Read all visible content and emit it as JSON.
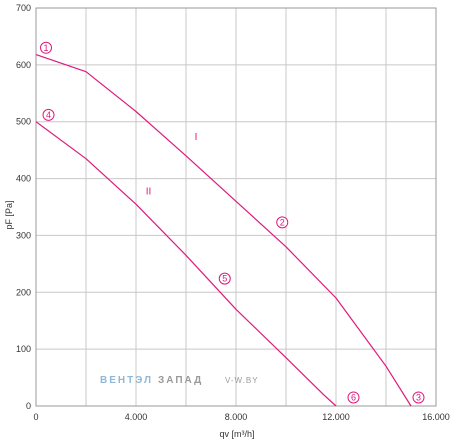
{
  "chart_data": {
    "type": "line",
    "xlabel": "qv [m³/h]",
    "ylabel": "pF [Pa]",
    "xlim": [
      0,
      16000
    ],
    "ylim": [
      0,
      700
    ],
    "x_ticks": [
      "0",
      "4.000",
      "8.000",
      "12.000",
      "16.000"
    ],
    "y_ticks": [
      "0",
      "100",
      "200",
      "300",
      "400",
      "500",
      "600",
      "700"
    ],
    "grid": true,
    "line_color": "#e0197d",
    "grid_color": "#c8c8c8",
    "series": [
      {
        "name": "I",
        "points": [
          [
            0,
            618
          ],
          [
            2000,
            588
          ],
          [
            4000,
            518
          ],
          [
            6000,
            440
          ],
          [
            8000,
            360
          ],
          [
            10000,
            280
          ],
          [
            12000,
            190
          ],
          [
            14000,
            70
          ],
          [
            15000,
            0
          ]
        ]
      },
      {
        "name": "II",
        "points": [
          [
            0,
            500
          ],
          [
            2000,
            435
          ],
          [
            4000,
            355
          ],
          [
            6000,
            265
          ],
          [
            8000,
            170
          ],
          [
            10000,
            85
          ],
          [
            11500,
            20
          ],
          [
            12000,
            0
          ]
        ]
      }
    ],
    "point_markers": [
      {
        "label": "1",
        "x": 400,
        "y": 630
      },
      {
        "label": "2",
        "x": 9850,
        "y": 323
      },
      {
        "label": "3",
        "x": 15300,
        "y": 15
      },
      {
        "label": "4",
        "x": 500,
        "y": 512
      },
      {
        "label": "5",
        "x": 7550,
        "y": 224
      },
      {
        "label": "6",
        "x": 12700,
        "y": 15
      }
    ],
    "curve_labels": [
      {
        "label": "I",
        "x": 6400,
        "y": 468
      },
      {
        "label": "II",
        "x": 4500,
        "y": 372
      }
    ]
  },
  "watermark": {
    "brand_a": "ВЕНТЭЛ",
    "brand_b": "ЗАПАД",
    "site": "V-W.BY",
    "color_a": "#8fb8d8",
    "color_b": "#9a9a9a"
  }
}
